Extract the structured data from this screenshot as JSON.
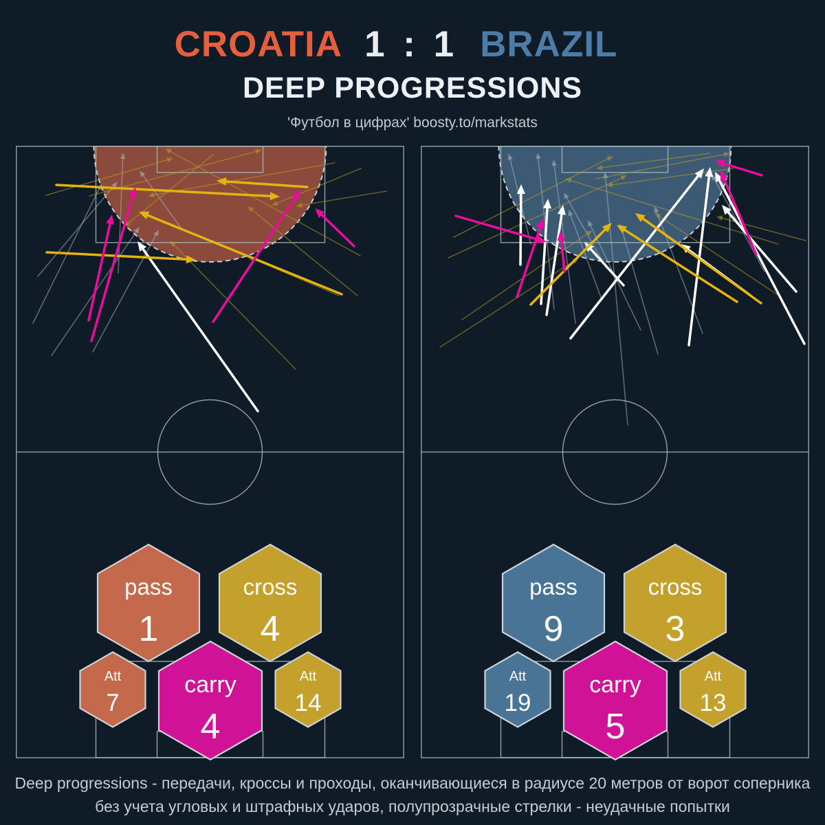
{
  "header": {
    "home": "CROATIA",
    "score": "1 : 1",
    "away": "BRAZIL",
    "title": "DEEP PROGRESSIONS"
  },
  "credit": "'Футбол в цифрах' boosty.to/markstats",
  "footer": {
    "line1": "Deep progressions - передачи, кроссы и проходы, оканчивающиеся в радиусе 20 метров от ворот соперника",
    "line2": "без учета угловых и штрафных ударов, полупрозрачные стрелки - неудачные попытки"
  },
  "colors": {
    "background": "#0f1b26",
    "home_accent": "#e55f3d",
    "away_accent": "#4d7da6",
    "pitch_line": "#a7bcba",
    "zone_edge": "#c9ced2",
    "pass_arrow": "#ffffff",
    "cross_arrow": "#e6b30c",
    "carry_arrow": "#ea0d9d",
    "pass_failed_arrow": "rgba(168,184,196,0.5)",
    "cross_failed_arrow": "rgba(186,158,38,0.5)",
    "hex_border": "#ccd3d8",
    "text_light": "#eef1f3"
  },
  "chart_data": {
    "type": "pitch-arrow-map",
    "note_visible_text_only": true,
    "legend": {
      "pass": "white arrows",
      "cross": "gold arrows",
      "carry": "magenta arrows",
      "failed": "semi-transparent arrows"
    },
    "teams": [
      {
        "name": "CROATIA",
        "zone_color": "#8b4a3b",
        "stats": {
          "pass": 1,
          "pass_attempts": 7,
          "cross": 4,
          "cross_attempts": 14,
          "carry": 4
        },
        "hexagons": [
          {
            "slot": "pass",
            "label": "pass",
            "value": "1",
            "fill": "#c4694b"
          },
          {
            "slot": "cross",
            "label": "cross",
            "value": "4",
            "fill": "#c4a12c"
          },
          {
            "slot": "att_pass",
            "label": "Att",
            "value": "7",
            "fill": "#c4694b"
          },
          {
            "slot": "carry",
            "label": "carry",
            "value": "4",
            "fill": "#d01296"
          },
          {
            "slot": "att_cross",
            "label": "Att",
            "value": "14",
            "fill": "#c4a12c"
          }
        ],
        "arrows": {
          "pass": [
            [
              352,
              386,
              177,
              139
            ]
          ],
          "cross": [
            [
              424,
              60,
              292,
              51
            ],
            [
              59,
              57,
              384,
              74
            ],
            [
              474,
              216,
              179,
              96
            ],
            [
              45,
              155,
              262,
              166
            ]
          ],
          "carry": [
            [
              106,
              254,
              140,
              100
            ],
            [
              110,
              284,
              174,
              60
            ],
            [
              287,
              256,
              414,
              64
            ],
            [
              492,
              146,
              435,
              91
            ]
          ],
          "pass_failed": [
            [
              32,
              190,
              148,
              52
            ],
            [
              25,
              258,
              125,
              55
            ],
            [
              149,
              185,
              156,
              10
            ],
            [
              52,
              305,
              180,
              118
            ],
            [
              112,
              300,
              208,
              122
            ],
            [
              242,
              122,
              180,
              36
            ]
          ],
          "cross_failed": [
            [
              107,
              73,
              358,
              6
            ],
            [
              501,
              160,
              217,
              4
            ],
            [
              502,
              33,
              372,
              87
            ],
            [
              44,
              72,
              229,
              18
            ],
            [
              464,
              25,
              192,
              73
            ],
            [
              407,
              325,
              224,
              138
            ],
            [
              470,
              218,
              337,
              161
            ],
            [
              539,
              66,
              407,
              88
            ],
            [
              287,
              13,
              157,
              118
            ],
            [
              497,
              218,
              337,
              88
            ]
          ]
        }
      },
      {
        "name": "BRAZIL",
        "zone_color": "#3d5a74",
        "stats": {
          "pass": 9,
          "pass_attempts": 19,
          "cross": 3,
          "cross_attempts": 13,
          "carry": 5
        },
        "hexagons": [
          {
            "slot": "pass",
            "label": "pass",
            "value": "9",
            "fill": "#4a7496"
          },
          {
            "slot": "cross",
            "label": "cross",
            "value": "3",
            "fill": "#c4a12c"
          },
          {
            "slot": "att_pass",
            "label": "Att",
            "value": "19",
            "fill": "#4a7496"
          },
          {
            "slot": "carry",
            "label": "carry",
            "value": "5",
            "fill": "#d01296"
          },
          {
            "slot": "att_cross",
            "label": "Att",
            "value": "13",
            "fill": "#c4a12c"
          }
        ],
        "arrows": {
          "pass": [
            [
              145,
              173,
              146,
              56
            ],
            [
              175,
              230,
              185,
              77
            ],
            [
              183,
              246,
              207,
              86
            ],
            [
              218,
              280,
              412,
              33
            ],
            [
              390,
              290,
              421,
              31
            ],
            [
              546,
              212,
              438,
              86
            ],
            [
              295,
              203,
              238,
              140
            ],
            [
              480,
              218,
              378,
              143
            ],
            [
              558,
              288,
              428,
              38
            ]
          ],
          "cross": [
            [
              160,
              231,
              278,
              112
            ],
            [
              460,
              227,
              285,
              115
            ],
            [
              495,
              229,
              312,
              98
            ]
          ],
          "carry": [
            [
              51,
              102,
              183,
              140
            ],
            [
              140,
              220,
              178,
              106
            ],
            [
              209,
              183,
              203,
              124
            ],
            [
              496,
              43,
              428,
              22
            ],
            [
              488,
              158,
              436,
              36
            ]
          ],
          "pass_failed": [
            [
              194,
              238,
              170,
              10
            ],
            [
              225,
              258,
              193,
              20
            ],
            [
              301,
              406,
              268,
              38
            ],
            [
              160,
              143,
              128,
              11
            ],
            [
              263,
              223,
              215,
              93
            ],
            [
              345,
              303,
              290,
              113
            ],
            [
              410,
              273,
              340,
              88
            ],
            [
              270,
              178,
              208,
              68
            ],
            [
              500,
              183,
              423,
              41
            ],
            [
              320,
              268,
              243,
              108
            ]
          ],
          "cross_failed": [
            [
              48,
              133,
              280,
              15
            ],
            [
              40,
              163,
              300,
              43
            ],
            [
              60,
              253,
              250,
              123
            ],
            [
              28,
              293,
              230,
              163
            ],
            [
              420,
              11,
              255,
              33
            ],
            [
              455,
              33,
              270,
              58
            ],
            [
              520,
              143,
              210,
              48
            ],
            [
              560,
              138,
              430,
              103
            ],
            [
              255,
              48,
              450,
              11
            ],
            [
              521,
              218,
              340,
              98
            ]
          ]
        }
      }
    ]
  }
}
